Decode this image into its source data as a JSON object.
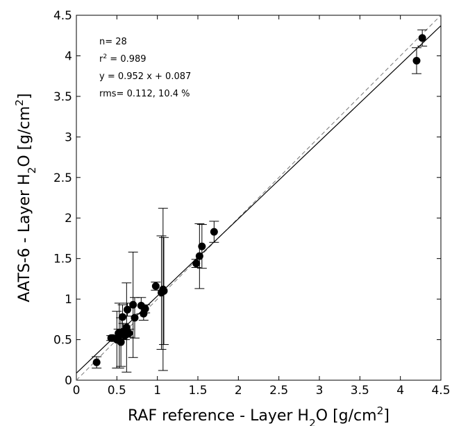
{
  "chart_data": {
    "type": "scatter",
    "xlabel": [
      "RAF reference - Layer H",
      "2",
      "O [g/cm",
      "2",
      "]"
    ],
    "ylabel": [
      "AATS-6 - Layer H",
      "2",
      "O [g/cm",
      "2",
      "]"
    ],
    "annotations": [
      [
        "n= 28"
      ],
      [
        "r",
        "2",
        " = 0.989"
      ],
      [
        "y = 0.952 x + 0.087"
      ],
      [
        "rms= 0.112, 10.4 %"
      ]
    ],
    "fit_line": {
      "slope": 0.952,
      "intercept": 0.087
    },
    "x": [
      0.25,
      0.43,
      0.45,
      0.5,
      0.52,
      0.53,
      0.55,
      0.57,
      0.58,
      0.6,
      0.62,
      0.63,
      0.65,
      0.7,
      0.72,
      0.8,
      0.83,
      0.85,
      0.98,
      1.05,
      1.07,
      1.08,
      1.48,
      1.52,
      1.55,
      1.7,
      4.2,
      4.27
    ],
    "series": [
      {
        "color": "#000000",
        "values": [
          0.22,
          0.52,
          0.52,
          0.5,
          0.58,
          0.55,
          0.47,
          0.78,
          0.6,
          0.55,
          0.65,
          0.87,
          0.58,
          0.93,
          0.77,
          0.92,
          0.82,
          0.88,
          1.16,
          1.08,
          1.12,
          1.1,
          1.44,
          1.53,
          1.65,
          1.83,
          3.94,
          4.22
        ],
        "errors": [
          0.07,
          0.03,
          0.03,
          0.35,
          0.05,
          0.4,
          0.3,
          0.15,
          0.1,
          0.05,
          0.55,
          0.08,
          0.05,
          0.65,
          0.25,
          0.1,
          0.08,
          0.05,
          0.05,
          0.7,
          1.0,
          0.66,
          0.05,
          0.4,
          0.27,
          0.13,
          0.16,
          0.1
        ]
      }
    ],
    "xlim": [
      0,
      4.5
    ],
    "ylim": [
      0,
      4.5
    ],
    "xticks": [
      0,
      0.5,
      1,
      1.5,
      2,
      2.5,
      3,
      3.5,
      4,
      4.5
    ],
    "yticks": [
      0,
      0.5,
      1,
      1.5,
      2,
      2.5,
      3,
      3.5,
      4,
      4.5
    ]
  }
}
